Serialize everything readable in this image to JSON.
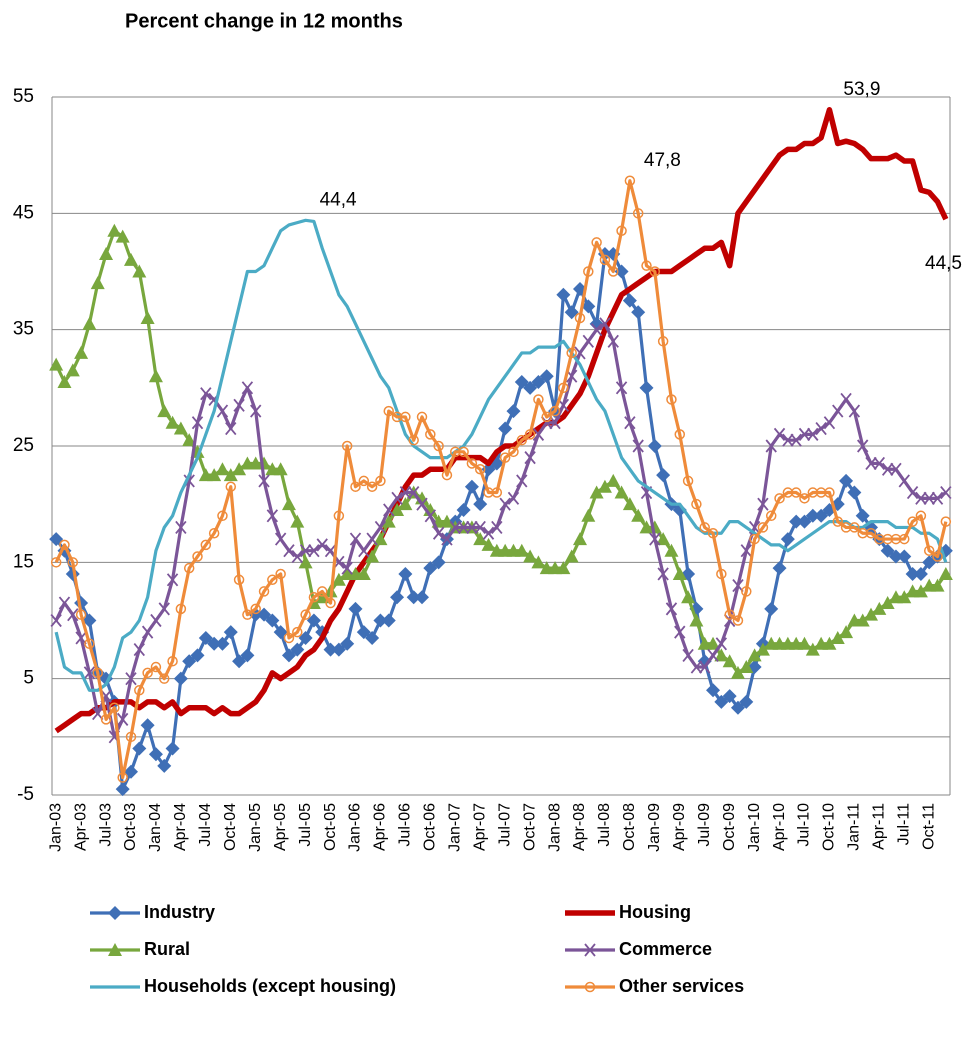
{
  "chart_data": {
    "type": "line",
    "title": "Percent change in 12 months",
    "categories": [
      "Jan-03",
      null,
      null,
      "Apr-03",
      null,
      null,
      "Jul-03",
      null,
      null,
      "Oct-03",
      null,
      null,
      "Jan-04",
      null,
      null,
      "Apr-04",
      null,
      null,
      "Jul-04",
      null,
      null,
      "Oct-04",
      null,
      null,
      "Jan-05",
      null,
      null,
      "Apr-05",
      null,
      null,
      "Jul-05",
      null,
      null,
      "Oct-05",
      null,
      null,
      "Jan-06",
      null,
      null,
      "Apr-06",
      null,
      null,
      "Jul-06",
      null,
      null,
      "Oct-06",
      null,
      null,
      "Jan-07",
      null,
      null,
      "Apr-07",
      null,
      null,
      "Jul-07",
      null,
      null,
      "Oct-07",
      null,
      null,
      "Jan-08",
      null,
      null,
      "Apr-08",
      null,
      null,
      "Jul-08",
      null,
      null,
      "Oct-08",
      null,
      null,
      "Jan-09",
      null,
      null,
      "Apr-09",
      null,
      null,
      "Jul-09",
      null,
      null,
      "Oct-09",
      null,
      null,
      "Jan-10",
      null,
      null,
      "Apr-10",
      null,
      null,
      "Jul-10",
      null,
      null,
      "Oct-10",
      null,
      null,
      "Jan-11",
      null,
      null,
      "Apr-11",
      null,
      null,
      "Jul-11",
      null,
      null,
      "Oct-11",
      null,
      null
    ],
    "ylim": [
      -5,
      55
    ],
    "yticks": [
      -5,
      5,
      15,
      25,
      35,
      45,
      55
    ],
    "grid": true,
    "series": [
      {
        "name": "Industry",
        "color": "#3f6fb6",
        "marker": "diamond",
        "values": [
          17,
          16,
          14,
          11.5,
          10,
          5.5,
          5,
          3,
          -4.5,
          -3,
          -1,
          1,
          -1.5,
          -2.5,
          -1,
          5,
          6.5,
          7,
          8.5,
          8,
          8,
          9,
          6.5,
          7,
          10.5,
          10.5,
          10,
          9,
          7,
          7.5,
          8.5,
          10,
          9,
          7.5,
          7.5,
          8,
          11,
          9,
          8.5,
          10,
          10,
          12,
          14,
          12,
          12,
          14.5,
          15,
          17,
          18.5,
          19.5,
          21.5,
          20,
          23,
          23.5,
          26.5,
          28,
          30.5,
          30,
          30.5,
          31,
          28,
          38,
          36.5,
          38.5,
          37,
          35.5,
          41.5,
          41.5,
          40,
          37.5,
          36.5,
          30,
          25,
          22.5,
          20,
          19.5,
          14,
          11,
          6.5,
          4,
          3,
          3.5,
          2.5,
          3,
          6,
          8,
          11,
          14.5,
          17,
          18.5,
          18.5,
          19,
          19,
          19.5,
          20,
          22,
          21,
          19,
          18,
          17,
          16,
          15.5,
          15.5,
          14,
          14,
          15,
          15.5,
          16
        ]
      },
      {
        "name": "Housing",
        "color": "#c00000",
        "marker": "none",
        "values": [
          0.5,
          1,
          1.5,
          2,
          2,
          2.5,
          2.5,
          3,
          3,
          3,
          2.5,
          3,
          3,
          2.5,
          3,
          2,
          2.5,
          2.5,
          2.5,
          2,
          2.5,
          2,
          2,
          2.5,
          3,
          4,
          5.5,
          5,
          5.5,
          6,
          7,
          7.5,
          8.5,
          10,
          11,
          12.5,
          14,
          15,
          16,
          17,
          18.5,
          20,
          21.5,
          22.5,
          22.5,
          23,
          23,
          23,
          24,
          24,
          24,
          24,
          23.5,
          24.5,
          25,
          25,
          25.5,
          26,
          26.5,
          27,
          27,
          27.5,
          28.5,
          29.5,
          31,
          33,
          35,
          36.5,
          38,
          38.5,
          39,
          39.5,
          40,
          40,
          40,
          40.5,
          41,
          41.5,
          42,
          42,
          42.5,
          40.5,
          45,
          46,
          47,
          48,
          49,
          50,
          50.5,
          50.5,
          51,
          51,
          51.5,
          53.9,
          51,
          51.2,
          51,
          50.5,
          49.7,
          49.7,
          49.7,
          50,
          49.5,
          49.5,
          47,
          46.8,
          46,
          44.5
        ],
        "value_labels": [
          null,
          null,
          null,
          null,
          null,
          null,
          null,
          null,
          null,
          null,
          null,
          null,
          null,
          null,
          null,
          null,
          null,
          null,
          null,
          null,
          null,
          null,
          null,
          null,
          null,
          null,
          null,
          null,
          null,
          null,
          null,
          null,
          null,
          null,
          null,
          null,
          null,
          null,
          null,
          null,
          null,
          null,
          null,
          null,
          null,
          null,
          null,
          null,
          null,
          null,
          null,
          null,
          null,
          null,
          null,
          null,
          null,
          null,
          null,
          null,
          null,
          null,
          null,
          null,
          null,
          null,
          null,
          null,
          null,
          null,
          null,
          null,
          null,
          null,
          null,
          null,
          null,
          null,
          null,
          null,
          null,
          null,
          null,
          null,
          null,
          null,
          null,
          null,
          null,
          null,
          null,
          null,
          null,
          "53,9",
          null,
          null,
          null,
          null,
          null,
          null,
          null,
          null,
          null,
          null,
          null,
          null,
          null,
          "44,5"
        ]
      },
      {
        "name": "Rural",
        "color": "#78a73d",
        "marker": "triangle",
        "values": [
          32,
          30.5,
          31.5,
          33,
          35.5,
          39,
          41.5,
          43.5,
          43,
          41,
          40,
          36,
          31,
          28,
          27,
          26.5,
          25.5,
          24.5,
          22.5,
          22.5,
          23,
          22.5,
          23,
          23.5,
          23.5,
          23.5,
          23,
          23,
          20,
          18.5,
          15,
          11.5,
          12,
          12.5,
          13.5,
          14,
          14,
          14,
          15.5,
          17,
          18.5,
          19.5,
          20,
          21,
          20.5,
          19.5,
          18.5,
          18.5,
          18,
          18,
          18,
          17,
          16.5,
          16,
          16,
          16,
          16,
          15.5,
          15,
          14.5,
          14.5,
          14.5,
          15.5,
          17,
          19,
          21,
          21.5,
          22,
          21,
          20,
          19,
          18,
          18,
          17,
          16,
          14,
          12,
          10,
          8,
          8,
          7,
          6.5,
          5.5,
          6,
          7,
          7.5,
          8,
          8,
          8,
          8,
          8,
          7.5,
          8,
          8,
          8.5,
          9,
          10,
          10,
          10.5,
          11,
          11.5,
          12,
          12,
          12.5,
          12.5,
          13,
          13,
          14
        ]
      },
      {
        "name": "Commerce",
        "color": "#7b5598",
        "marker": "cross",
        "values": [
          10,
          11.5,
          10.5,
          8.5,
          5.5,
          2,
          3.5,
          0,
          1.5,
          5,
          7.5,
          9,
          10,
          11,
          13.5,
          18,
          22,
          27,
          29.5,
          29,
          28,
          26.5,
          28.5,
          30,
          28,
          22,
          19,
          17,
          16,
          15.5,
          16,
          16,
          16.5,
          16,
          15,
          14.5,
          17,
          16,
          17,
          18,
          19.5,
          20.5,
          21,
          21,
          20,
          19,
          17.5,
          17,
          18,
          18,
          18,
          18,
          17.5,
          18,
          20,
          20.5,
          22,
          24,
          26,
          27,
          27,
          28.5,
          31,
          33,
          34,
          35,
          35.5,
          34,
          30,
          27,
          25,
          21,
          17,
          14,
          11,
          9,
          7,
          6,
          6,
          7,
          8,
          10,
          13,
          16,
          18,
          20,
          25,
          26,
          25.5,
          25.5,
          26,
          26,
          26.5,
          27,
          28,
          29,
          28,
          25,
          23.5,
          23.5,
          23,
          23,
          22,
          21,
          20.5,
          20.5,
          20.5,
          21
        ]
      },
      {
        "name": "Households (except housing)",
        "color": "#4babc5",
        "marker": "none",
        "values": [
          9,
          6,
          5.5,
          5.5,
          4,
          4,
          4.5,
          6,
          8.5,
          9,
          10,
          12,
          16,
          18,
          19,
          21,
          22.5,
          24,
          26,
          28,
          31,
          34,
          37,
          40,
          40,
          40.5,
          42,
          43.5,
          44,
          44.2,
          44.4,
          44.3,
          42,
          40,
          38,
          37,
          35.5,
          34,
          32.5,
          31,
          30,
          28,
          26,
          25,
          24.5,
          24,
          24,
          24,
          24.5,
          25,
          26,
          27.5,
          29,
          30,
          31,
          32,
          33,
          33,
          33.5,
          33.5,
          33.5,
          34,
          33,
          32,
          30.5,
          29,
          28,
          26,
          24,
          23,
          22,
          21.5,
          21,
          20.5,
          20,
          20,
          19,
          18,
          17.5,
          17.5,
          17.5,
          18.5,
          18.5,
          18,
          17.5,
          17,
          16.5,
          16.5,
          16,
          16.5,
          17,
          17.5,
          18,
          18.5,
          18.5,
          18.5,
          18,
          18,
          18.5,
          18.5,
          18.5,
          18,
          18,
          18,
          17.5,
          17.5,
          17,
          15
        ],
        "value_labels": [
          null,
          null,
          null,
          null,
          null,
          null,
          null,
          null,
          null,
          null,
          null,
          null,
          null,
          null,
          null,
          null,
          null,
          null,
          null,
          null,
          null,
          null,
          null,
          null,
          null,
          null,
          null,
          null,
          null,
          null,
          "44,4",
          null,
          null,
          null,
          null,
          null,
          null,
          null,
          null,
          null,
          null,
          null,
          null,
          null,
          null,
          null,
          null,
          null,
          null,
          null,
          null,
          null,
          null,
          null,
          null,
          null,
          null,
          null,
          null,
          null,
          null,
          null,
          null,
          null,
          null,
          null,
          null,
          null,
          null,
          null,
          null,
          null,
          null,
          null,
          null,
          null,
          null,
          null,
          null,
          null,
          null,
          null,
          null,
          null,
          null,
          null,
          null,
          null,
          null,
          null,
          null,
          null,
          null,
          null,
          null,
          null,
          null,
          null,
          null,
          null,
          null,
          null,
          null,
          null,
          null,
          null,
          null,
          null
        ]
      },
      {
        "name": "Other services",
        "color": "#ef8b3a",
        "marker": "circle",
        "values": [
          15,
          16.5,
          15,
          10.5,
          8,
          5.5,
          1.5,
          2.5,
          -3.5,
          0,
          4,
          5.5,
          6,
          5,
          6.5,
          11,
          14.5,
          15.5,
          16.5,
          17.5,
          19,
          21.5,
          13.5,
          10.5,
          11,
          12.5,
          13.5,
          14,
          8.5,
          9,
          10.5,
          12,
          12.5,
          11.5,
          19,
          25,
          21.5,
          22,
          21.5,
          22,
          28,
          27.5,
          27.5,
          25.5,
          27.5,
          26,
          25,
          22.5,
          24.5,
          24.5,
          23.5,
          23,
          21,
          21,
          24,
          24.5,
          25.5,
          26,
          29,
          27.5,
          28,
          30,
          33,
          36,
          40,
          42.5,
          41,
          40,
          43.5,
          47.8,
          45,
          40.5,
          40,
          34,
          29,
          26,
          22,
          20,
          18,
          17.5,
          14,
          10.5,
          10,
          12.5,
          17,
          18,
          19,
          20.5,
          21,
          21,
          20.5,
          21,
          21,
          21,
          18.5,
          18,
          18,
          17.5,
          17.5,
          17,
          17,
          17,
          17,
          18.5,
          19,
          16,
          15.5,
          18.5
        ],
        "value_labels": [
          null,
          null,
          null,
          null,
          null,
          null,
          null,
          null,
          null,
          null,
          null,
          null,
          null,
          null,
          null,
          null,
          null,
          null,
          null,
          null,
          null,
          null,
          null,
          null,
          null,
          null,
          null,
          null,
          null,
          null,
          null,
          null,
          null,
          null,
          null,
          null,
          null,
          null,
          null,
          null,
          null,
          null,
          null,
          null,
          null,
          null,
          null,
          null,
          null,
          null,
          null,
          null,
          null,
          null,
          null,
          null,
          null,
          null,
          null,
          null,
          null,
          null,
          null,
          null,
          null,
          null,
          null,
          null,
          null,
          "47,8",
          null,
          null,
          null,
          null,
          null,
          null,
          null,
          null,
          null,
          null,
          null,
          null,
          null,
          null,
          null,
          null,
          null,
          null,
          null,
          null,
          null,
          null,
          null,
          null,
          null,
          null,
          null,
          null,
          null,
          null,
          null,
          null,
          null,
          null,
          null,
          null,
          null,
          null
        ]
      }
    ]
  }
}
